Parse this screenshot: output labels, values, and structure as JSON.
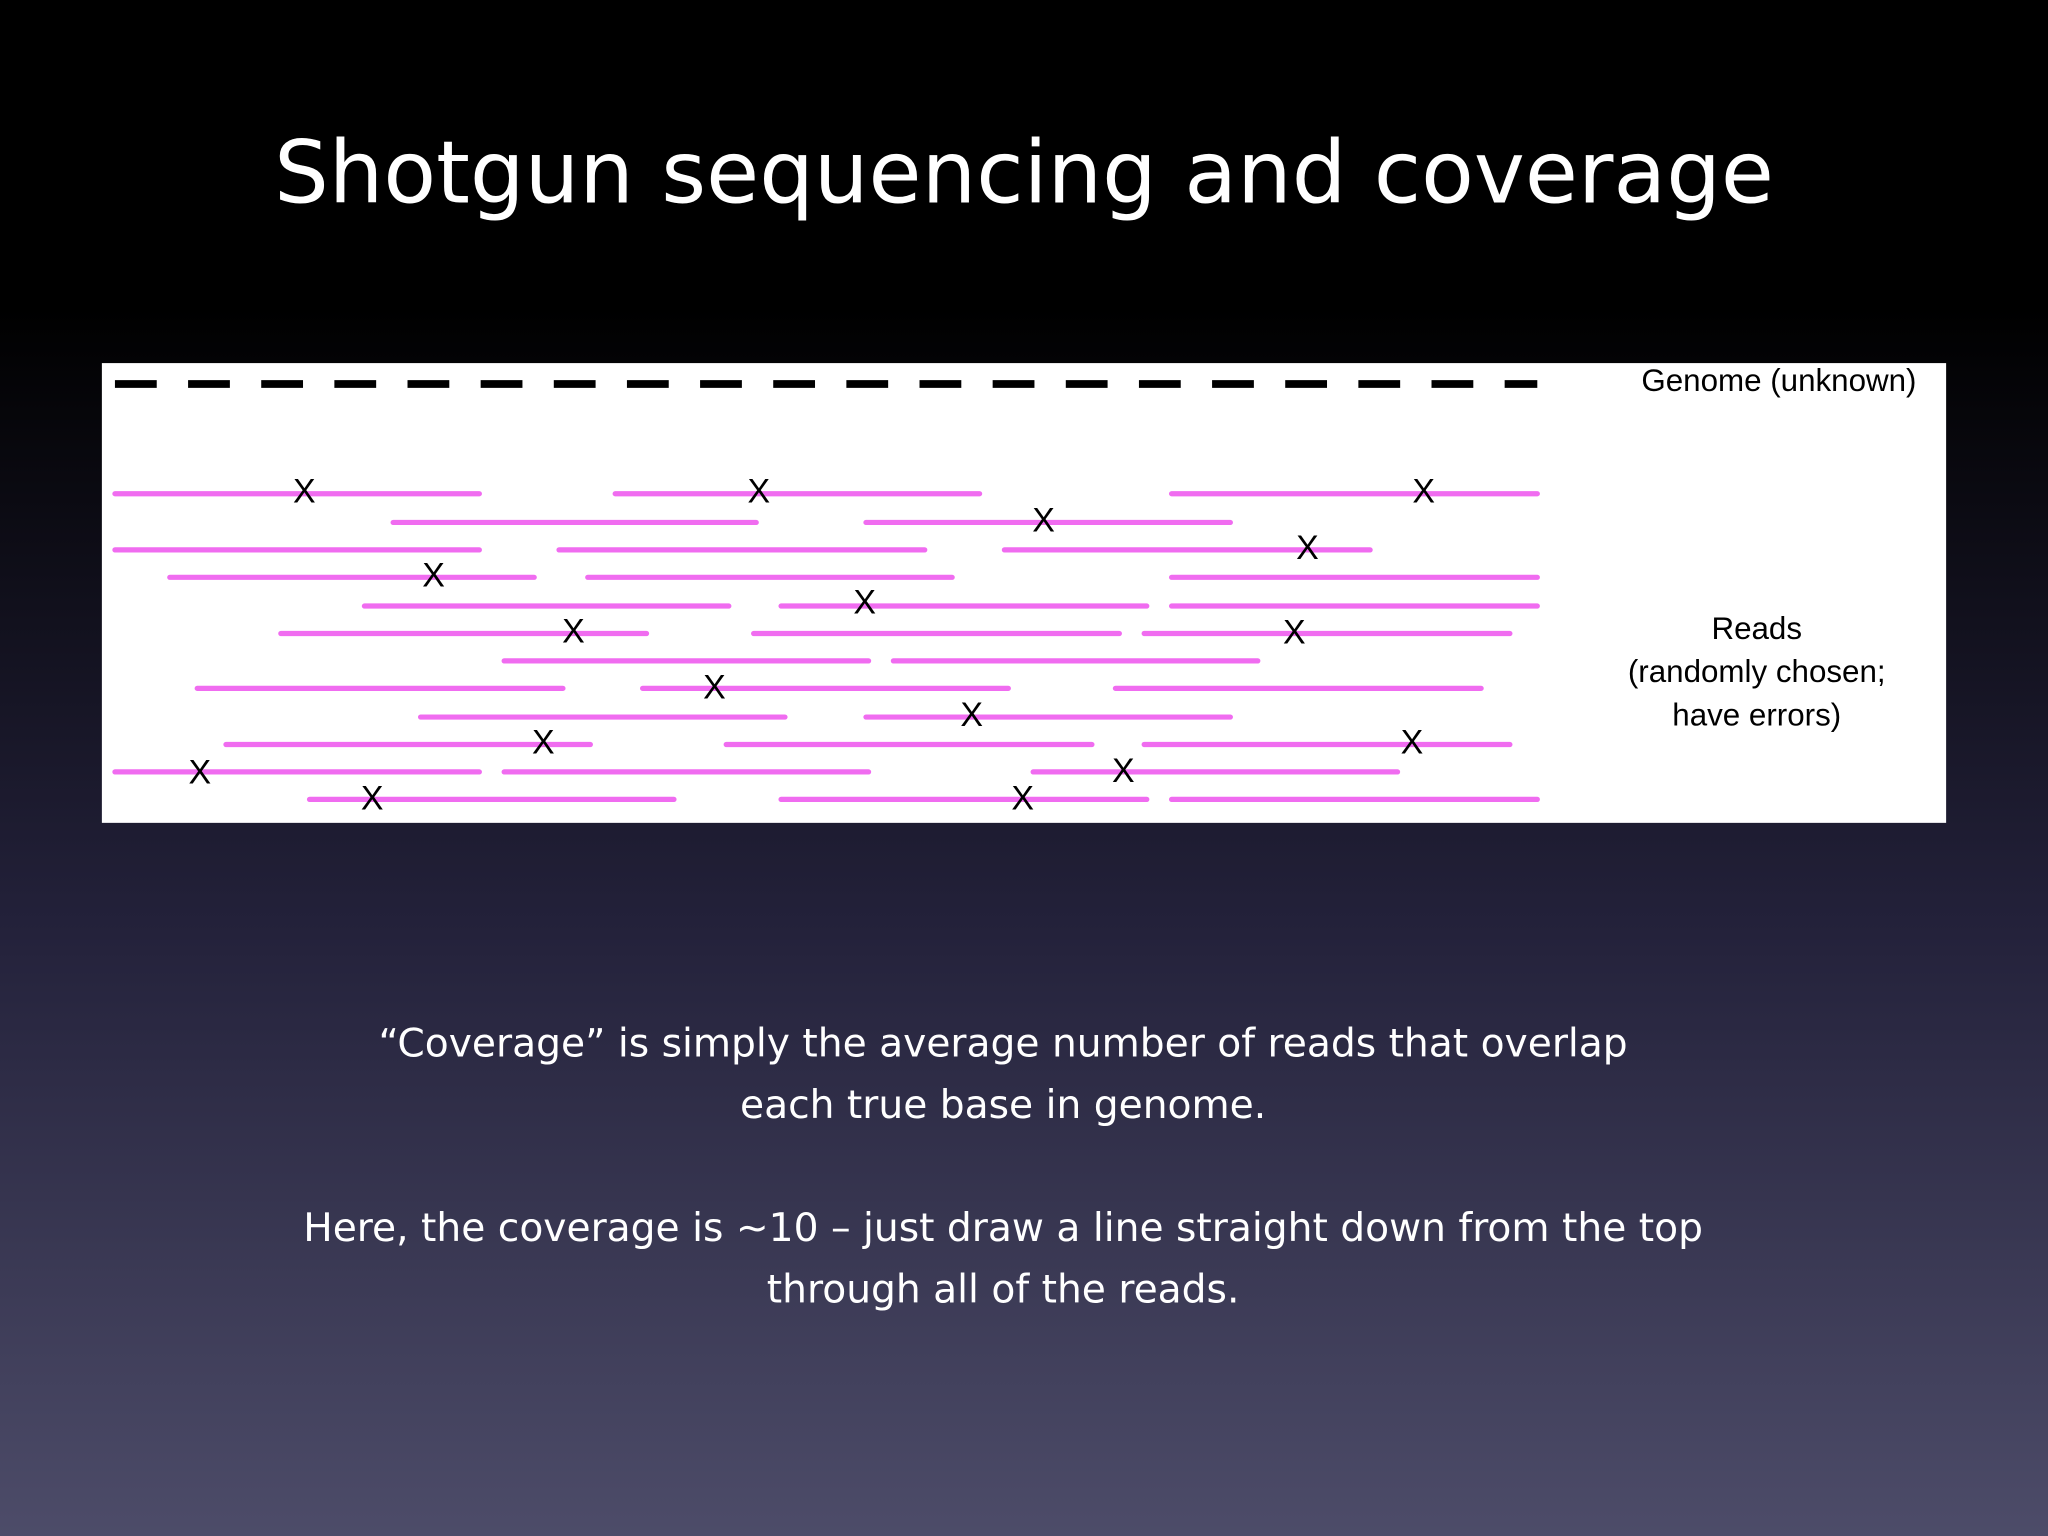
{
  "slide": {
    "title": "Shotgun sequencing and coverage",
    "diagram": {
      "genome_label": "Genome (unknown)",
      "reads_label": [
        "Reads",
        "(randomly chosen;",
        "have errors)"
      ],
      "error_mark": "X"
    },
    "paragraphs": [
      [
        "“Coverage” is simply the average number of reads that overlap",
        "each true base in genome."
      ],
      [
        "Here, the coverage is ~10 – just draw a line straight down from the top",
        "through all of the reads."
      ]
    ]
  }
}
